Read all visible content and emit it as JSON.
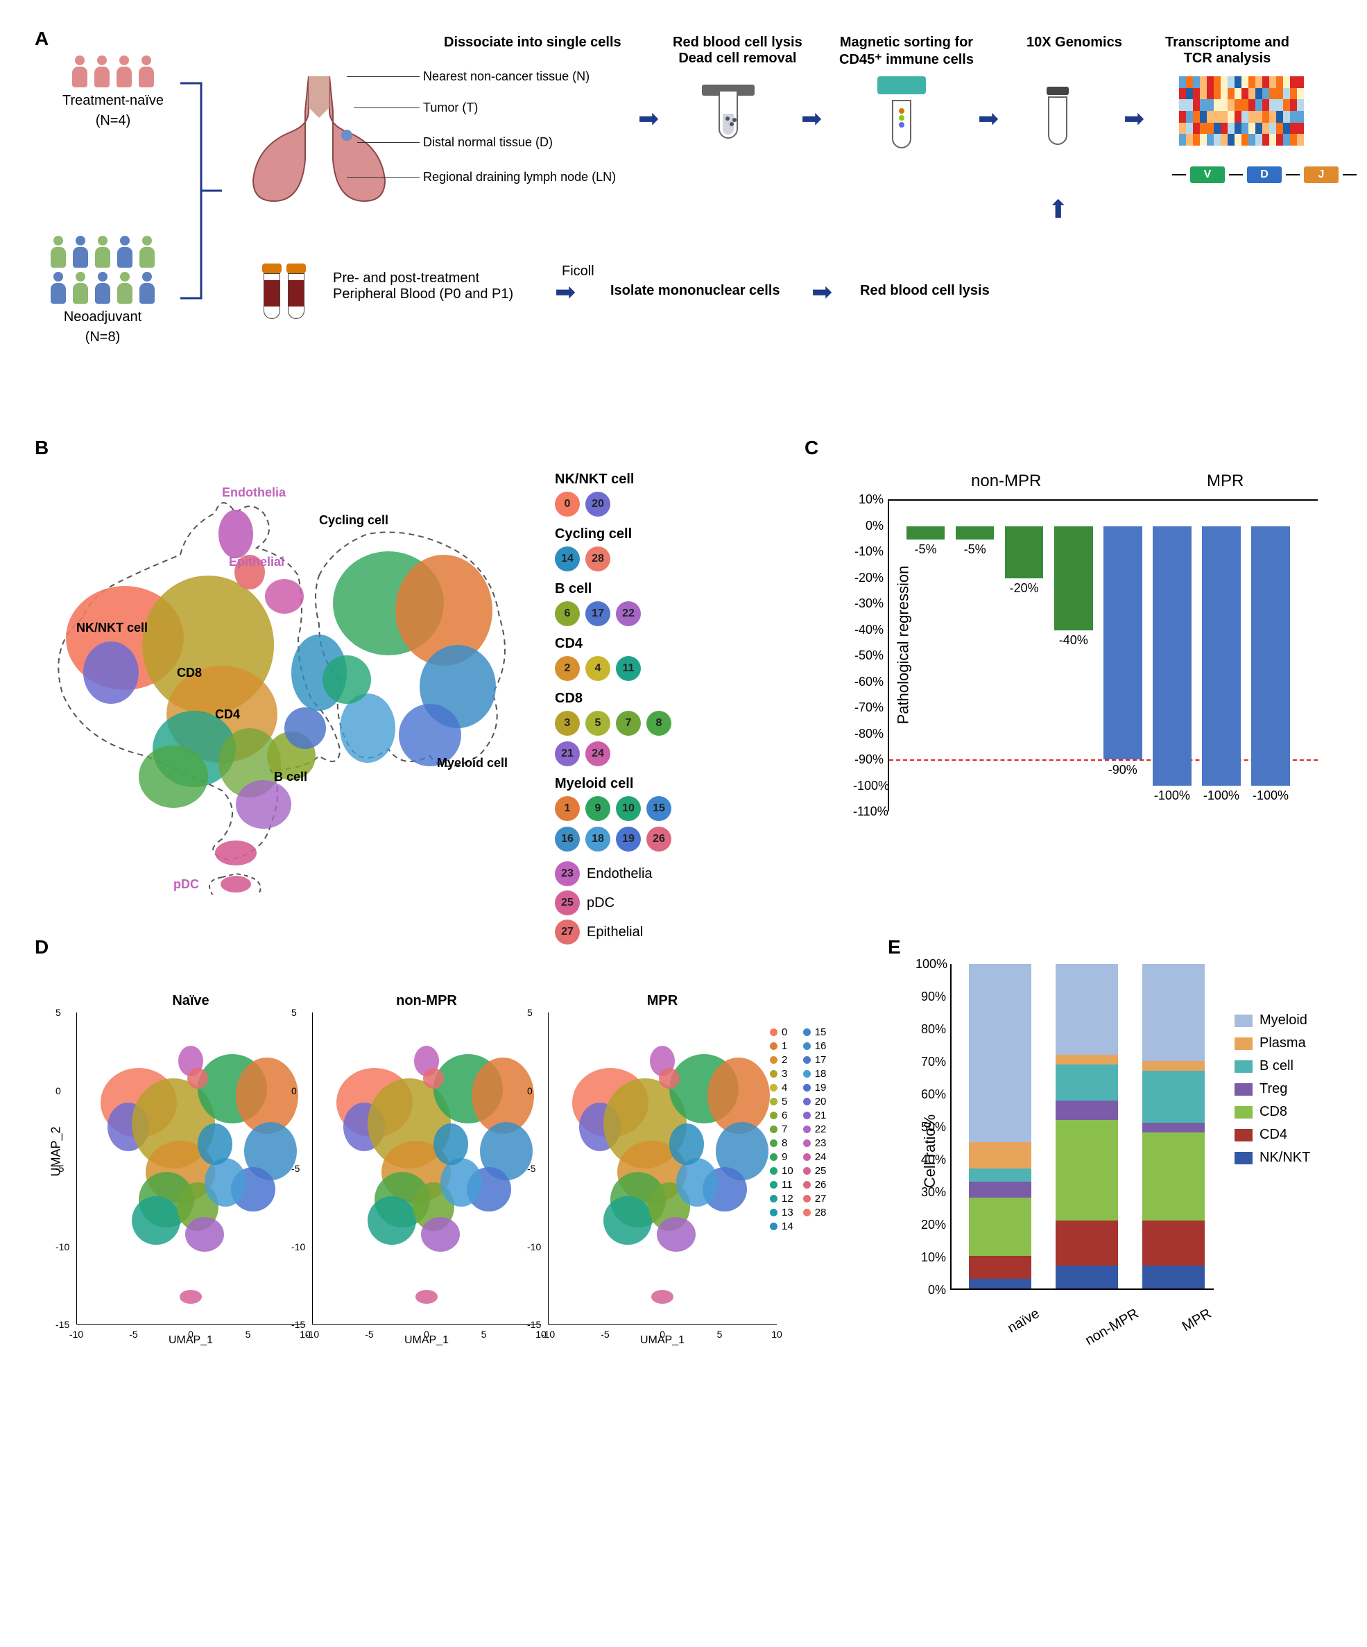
{
  "panelA": {
    "label": "A",
    "cohort1": {
      "label": "Treatment-naïve",
      "n": "(N=4)",
      "color": "#e08b8b"
    },
    "cohort2": {
      "label": "Neoadjuvant",
      "n": "(N=8)",
      "colors": [
        "#8eb96f",
        "#5b7fbf"
      ]
    },
    "workflow": {
      "step1": "Dissociate into single cells",
      "step2a": "Red blood cell lysis",
      "step2b": "Dead cell removal",
      "step3a": "Magnetic sorting for",
      "step3b": "CD45⁺ immune cells",
      "step4": "10X Genomics",
      "step5a": "Transcriptome and",
      "step5b": "TCR analysis"
    },
    "tissues": {
      "n": "Nearest non-cancer tissue (N)",
      "t": "Tumor (T)",
      "d": "Distal normal tissue (D)",
      "ln": "Regional draining lymph node (LN)"
    },
    "bloodrow": {
      "blood_label": "Pre- and post-treatment Peripheral Blood (P0 and P1)",
      "ficoll": "Ficoll",
      "isolate": "Isolate mononuclear cells",
      "rbc": "Red blood cell lysis"
    },
    "vdj": {
      "v": "V",
      "d": "D",
      "j": "J",
      "v_color": "#22a35a",
      "d_color": "#2f6fc4",
      "j_color": "#e08a2c"
    },
    "heatmap_colors": [
      "#1e5fa8",
      "#5ea3d6",
      "#b8d8ec",
      "#fef3c7",
      "#fdba74",
      "#f97316",
      "#dc2626"
    ]
  },
  "panelB": {
    "label": "B",
    "annots": {
      "endothelia": "Endothelia",
      "epithelial": "Epithelial",
      "cycling": "Cycling cell",
      "nknkt": "NK/NKT cell",
      "cd8": "CD8",
      "cd4": "CD4",
      "bcell": "B cell",
      "myeloid": "Myeloid cell",
      "pdc": "pDC"
    },
    "cluster_colors": {
      "0": "#f47a60",
      "1": "#e07b3a",
      "2": "#d6902f",
      "3": "#b7a02a",
      "4": "#cab52f",
      "5": "#a6b436",
      "6": "#8aa82e",
      "7": "#6fa636",
      "8": "#4ca646",
      "9": "#2fa55b",
      "10": "#22a573",
      "11": "#1fa28a",
      "12": "#1e9e9e",
      "13": "#2196b0",
      "14": "#2b8ec0",
      "15": "#3d84cc",
      "16": "#3e8ec6",
      "17": "#5075ca",
      "18": "#489dd5",
      "19": "#4a73d0",
      "20": "#6e6cd0",
      "21": "#8868cc",
      "22": "#a566c6",
      "23": "#c063bd",
      "24": "#cc5eaa",
      "25": "#d66095",
      "26": "#de6680",
      "27": "#e56d6d",
      "28": "#eb7a6a"
    },
    "legend_groups": [
      {
        "title": "NK/NKT cell",
        "ids": [
          "0",
          "20"
        ]
      },
      {
        "title": "Cycling cell",
        "ids": [
          "14",
          "28"
        ]
      },
      {
        "title": "B cell",
        "ids": [
          "6",
          "17",
          "22"
        ]
      },
      {
        "title": "CD4",
        "ids": [
          "2",
          "4",
          "11"
        ]
      },
      {
        "title": "CD8",
        "ids": [
          "3",
          "5",
          "7",
          "8",
          "21",
          "24"
        ]
      },
      {
        "title": "Myeloid cell",
        "ids": [
          "1",
          "9",
          "10",
          "15",
          "16",
          "18",
          "19",
          "26"
        ]
      }
    ],
    "singletons": [
      {
        "id": "23",
        "label": "Endothelia"
      },
      {
        "id": "25",
        "label": "pDC"
      },
      {
        "id": "27",
        "label": "Epithelial"
      }
    ]
  },
  "panelC": {
    "label": "C",
    "ylabel": "Pathological regression",
    "ylim": [
      -110,
      10
    ],
    "ytick_step": 10,
    "ticks": [
      "10%",
      "0%",
      "-10%",
      "-20%",
      "-30%",
      "-40%",
      "-50%",
      "-60%",
      "-70%",
      "-80%",
      "-90%",
      "-100%",
      "-110%"
    ],
    "dashline_at": -90,
    "groups": {
      "nonmpr": "non-MPR",
      "mpr": "MPR"
    },
    "bars": [
      {
        "value": -5,
        "label": "-5%",
        "color": "#3a8a3a"
      },
      {
        "value": -5,
        "label": "-5%",
        "color": "#3a8a3a"
      },
      {
        "value": -20,
        "label": "-20%",
        "color": "#3a8a3a"
      },
      {
        "value": -40,
        "label": "-40%",
        "color": "#3a8a3a"
      },
      {
        "value": -90,
        "label": "-90%",
        "color": "#4a76c4"
      },
      {
        "value": -100,
        "label": "-100%",
        "color": "#4a76c4"
      },
      {
        "value": -100,
        "label": "-100%",
        "color": "#4a76c4"
      },
      {
        "value": -100,
        "label": "-100%",
        "color": "#4a76c4"
      }
    ],
    "bar_width_pct": 9
  },
  "panelD": {
    "label": "D",
    "titles": [
      "Naïve",
      "non-MPR",
      "MPR"
    ],
    "xaxis": "UMAP_1",
    "yaxis": "UMAP_2",
    "xticks": [
      -10,
      -5,
      0,
      5,
      10
    ],
    "yticks": [
      -15,
      -10,
      -5,
      0,
      5
    ],
    "legend_items": [
      "0",
      "1",
      "2",
      "3",
      "4",
      "5",
      "6",
      "7",
      "8",
      "9",
      "10",
      "11",
      "12",
      "13",
      "14",
      "15",
      "16",
      "17",
      "18",
      "19",
      "20",
      "21",
      "22",
      "23",
      "24",
      "25",
      "26",
      "27",
      "28"
    ]
  },
  "panelE": {
    "label": "E",
    "ylabel": "Cell ratio%",
    "yticks": [
      "0%",
      "10%",
      "20%",
      "30%",
      "40%",
      "50%",
      "60%",
      "70%",
      "80%",
      "90%",
      "100%"
    ],
    "categories": [
      {
        "name": "Myeloid",
        "color": "#a7bde0"
      },
      {
        "name": "Plasma",
        "color": "#e6a55b"
      },
      {
        "name": "B cell",
        "color": "#4fb3b3"
      },
      {
        "name": "Treg",
        "color": "#7a5ca8"
      },
      {
        "name": "CD8",
        "color": "#8bbf4d"
      },
      {
        "name": "CD4",
        "color": "#a5352e"
      },
      {
        "name": "NK/NKT",
        "color": "#3458a5"
      }
    ],
    "bars": [
      {
        "label": "naïve",
        "NK/NKT": 3,
        "CD4": 7,
        "CD8": 18,
        "Treg": 5,
        "B cell": 4,
        "Plasma": 8,
        "Myeloid": 55
      },
      {
        "label": "non-MPR",
        "NK/NKT": 7,
        "CD4": 14,
        "CD8": 31,
        "Treg": 6,
        "B cell": 11,
        "Plasma": 3,
        "Myeloid": 28
      },
      {
        "label": "MPR",
        "NK/NKT": 7,
        "CD4": 14,
        "CD8": 27,
        "Treg": 3,
        "B cell": 16,
        "Plasma": 3,
        "Myeloid": 30
      }
    ]
  }
}
